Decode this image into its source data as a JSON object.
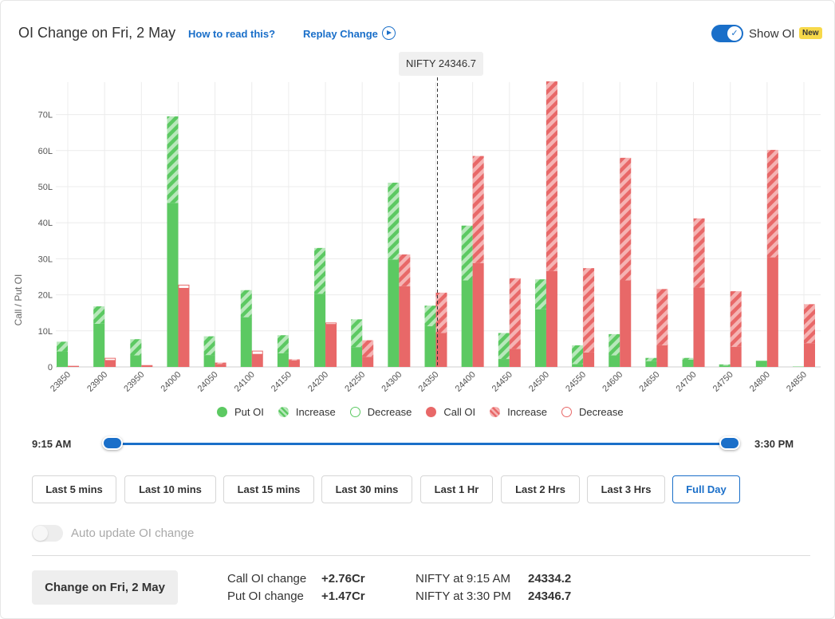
{
  "header": {
    "title": "OI Change on Fri, 2 May",
    "how_to_read": "How to read this?",
    "replay": "Replay Change",
    "show_oi": "Show OI",
    "new_badge": "New",
    "show_oi_enabled": true
  },
  "tooltip": {
    "label": "NIFTY 24346.7"
  },
  "chart_data": {
    "type": "bar",
    "ylabel": "Call / Put OI",
    "yunit": "L",
    "ylim": [
      0,
      79
    ],
    "yticks": [
      0,
      10,
      20,
      30,
      40,
      50,
      60,
      70
    ],
    "ytick_labels": [
      "0",
      "10L",
      "20L",
      "30L",
      "40L",
      "50L",
      "60L",
      "70L"
    ],
    "grid": true,
    "spot_marker": {
      "strike": 24350,
      "label": "NIFTY 24346.7"
    },
    "categories": [
      "23850",
      "23900",
      "23950",
      "24000",
      "24050",
      "24100",
      "24150",
      "24200",
      "24250",
      "24300",
      "24350",
      "24400",
      "24450",
      "24500",
      "24550",
      "24600",
      "24650",
      "24700",
      "24750",
      "24800",
      "24850"
    ],
    "series": [
      {
        "name": "Put OI",
        "kind": "put",
        "color": "#5cc962",
        "values": [
          4.3,
          12.0,
          3.2,
          45.5,
          3.3,
          13.8,
          3.8,
          20.3,
          5.5,
          29.8,
          11.3,
          24.0,
          2.2,
          16.0,
          0.8,
          3.2,
          1.6,
          2.0,
          0.4,
          1.4,
          0.1
        ]
      },
      {
        "name": "Increase",
        "kind": "put_increase",
        "color": "#5cc962",
        "values": [
          2.7,
          4.8,
          4.5,
          24.0,
          5.2,
          7.5,
          5.0,
          12.7,
          7.7,
          21.3,
          5.7,
          15.2,
          7.2,
          8.3,
          5.2,
          5.9,
          0.9,
          0.5,
          0.3,
          0.0,
          0.0
        ]
      },
      {
        "name": "Decrease",
        "kind": "put_decrease",
        "color": "#5cc962",
        "values": [
          0,
          0,
          0,
          0,
          0,
          0,
          0,
          0,
          0,
          0,
          0,
          0,
          0,
          0,
          0,
          0,
          0,
          0,
          0,
          0.2,
          0
        ]
      },
      {
        "name": "Call OI",
        "kind": "call",
        "color": "#e86868",
        "values": [
          0.3,
          1.8,
          0.5,
          21.8,
          0.8,
          3.5,
          1.8,
          11.8,
          2.8,
          22.4,
          9.4,
          28.8,
          5.0,
          26.6,
          4.0,
          24.0,
          6.0,
          22.0,
          5.6,
          30.4,
          6.6
        ]
      },
      {
        "name": "Increase",
        "kind": "call_increase",
        "color": "#e86868",
        "values": [
          0,
          0,
          0,
          0,
          0.4,
          0,
          0.3,
          0,
          4.6,
          8.8,
          11.2,
          29.7,
          19.6,
          52.6,
          23.4,
          34.0,
          15.6,
          19.2,
          15.4,
          29.8,
          10.8
        ]
      },
      {
        "name": "Decrease",
        "kind": "call_decrease",
        "color": "#e86868",
        "values": [
          0,
          0.6,
          0,
          0.9,
          0,
          0.9,
          0,
          0.4,
          0,
          0,
          0,
          0,
          0,
          0,
          0,
          0,
          0,
          0,
          0,
          0,
          0
        ]
      }
    ]
  },
  "legend": [
    {
      "label": "Put OI",
      "style": "solid",
      "color": "#5cc962"
    },
    {
      "label": "Increase",
      "style": "striped",
      "color": "#5cc962"
    },
    {
      "label": "Decrease",
      "style": "outline",
      "color": "#5cc962"
    },
    {
      "label": "Call OI",
      "style": "solid",
      "color": "#e86868"
    },
    {
      "label": "Increase",
      "style": "striped",
      "color": "#e86868"
    },
    {
      "label": "Decrease",
      "style": "outline",
      "color": "#e86868"
    }
  ],
  "slider": {
    "start": "9:15 AM",
    "end": "3:30 PM"
  },
  "ranges": [
    {
      "label": "Last 5 mins",
      "active": false
    },
    {
      "label": "Last 10 mins",
      "active": false
    },
    {
      "label": "Last 15 mins",
      "active": false
    },
    {
      "label": "Last 30 mins",
      "active": false
    },
    {
      "label": "Last 1 Hr",
      "active": false
    },
    {
      "label": "Last 2 Hrs",
      "active": false
    },
    {
      "label": "Last 3 Hrs",
      "active": false
    },
    {
      "label": "Full Day",
      "active": true
    }
  ],
  "auto_update": {
    "label": "Auto update OI change",
    "enabled": false
  },
  "footer": {
    "change_button": "Change on Fri, 2 May",
    "call_oi_change_label": "Call OI change",
    "call_oi_change_value": "+2.76Cr",
    "put_oi_change_label": "Put OI change",
    "put_oi_change_value": "+1.47Cr",
    "nifty_open_label": "NIFTY at 9:15 AM",
    "nifty_open_value": "24334.2",
    "nifty_close_label": "NIFTY at 3:30 PM",
    "nifty_close_value": "24346.7"
  },
  "colors": {
    "accent": "#1a6fc9",
    "put": "#5cc962",
    "call": "#e86868",
    "put_light": "#b8e8bb",
    "call_light": "#f5b3b3"
  }
}
